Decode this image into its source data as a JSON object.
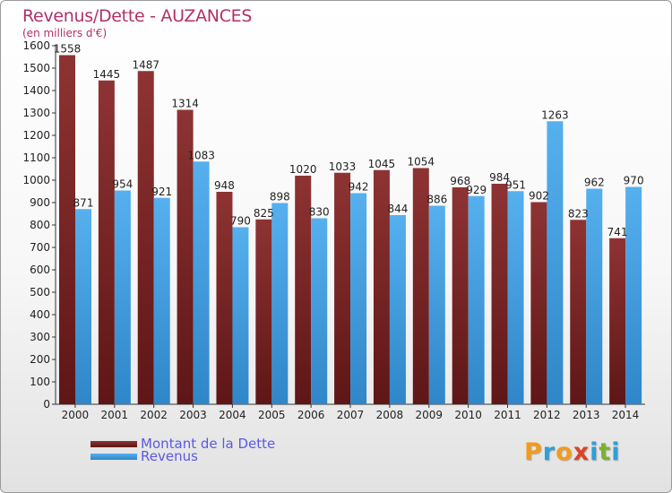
{
  "header": {
    "title": "Revenus/Dette - AUZANCES",
    "subtitle": "(en milliers d'€)"
  },
  "legend": {
    "debt_label": "Montant de la Dette",
    "revenue_label": "Revenus"
  },
  "logo": {
    "text": "Proxiti",
    "letters": [
      "P",
      "r",
      "o",
      "x",
      "i",
      "t",
      "i"
    ],
    "colors": [
      "#f39a1e",
      "#2e9fd8",
      "#f39a1e",
      "#d84325",
      "#2e9fd8",
      "#7ab32e",
      "#2e9fd8"
    ]
  },
  "colors": {
    "debt": "#7a2a2a",
    "debt_light": "#8e3333",
    "revenue": "#4ea6e6",
    "revenue_dark": "#2f86c8",
    "title": "#b0306a"
  },
  "chart_data": {
    "type": "bar",
    "title": "Revenus/Dette - AUZANCES",
    "ylabel": "(en milliers d'€)",
    "xlabel": "",
    "ylim": [
      0,
      1600
    ],
    "ytick_step": 100,
    "grid": false,
    "legend_position": "bottom-left",
    "categories": [
      "2000",
      "2001",
      "2002",
      "2003",
      "2004",
      "2005",
      "2006",
      "2007",
      "2008",
      "2009",
      "2010",
      "2011",
      "2012",
      "2013",
      "2014"
    ],
    "series": [
      {
        "name": "Montant de la Dette",
        "values": [
          1558,
          1445,
          1487,
          1314,
          948,
          825,
          1020,
          1033,
          1045,
          1054,
          968,
          984,
          902,
          823,
          741
        ]
      },
      {
        "name": "Revenus",
        "values": [
          871,
          954,
          921,
          1083,
          790,
          898,
          830,
          942,
          844,
          886,
          929,
          951,
          1263,
          962,
          970
        ]
      }
    ]
  }
}
